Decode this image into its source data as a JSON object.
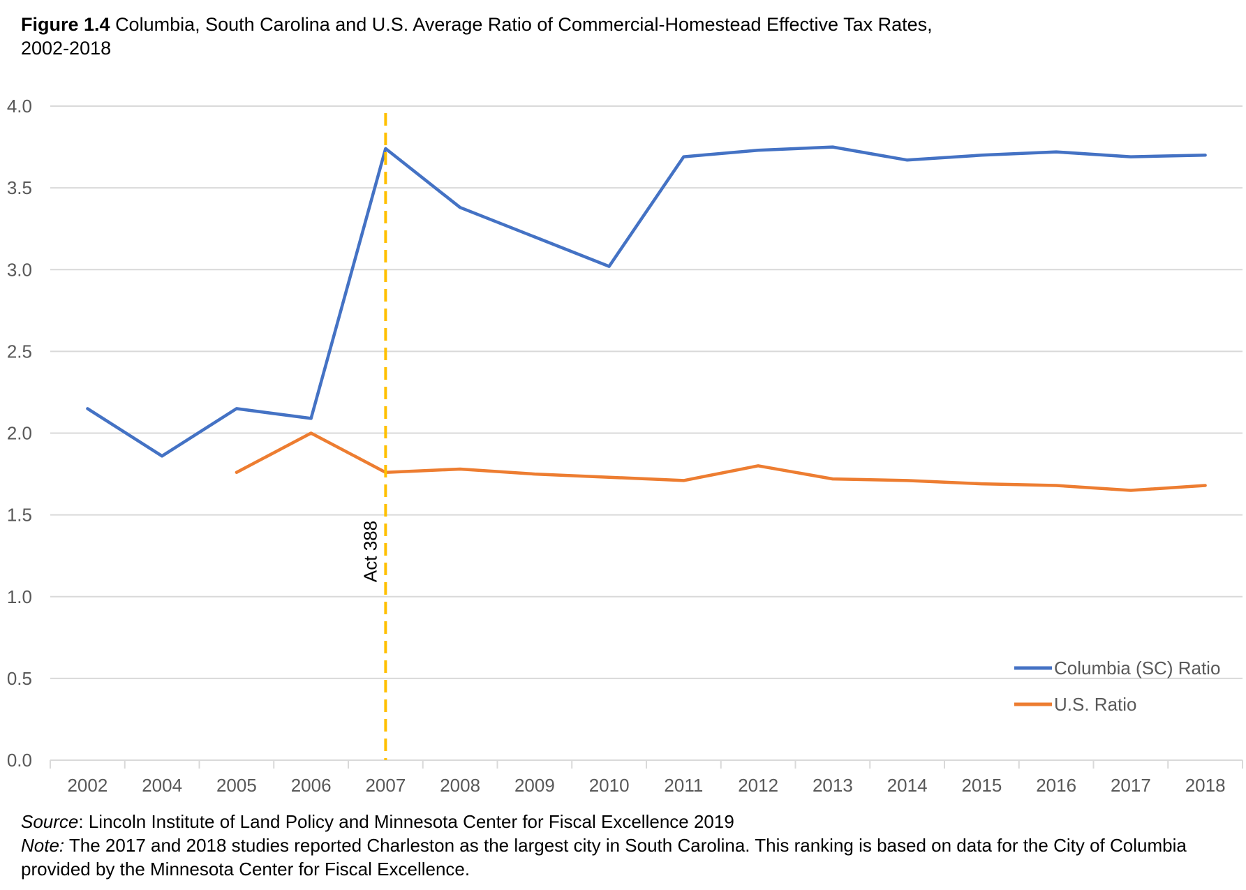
{
  "title": {
    "figure_label": "Figure 1.4",
    "line1": "Columbia, South Carolina and U.S. Average Ratio of Commercial-Homestead Effective Tax Rates,",
    "line2": "2002-2018"
  },
  "footer": {
    "source_label": "Source",
    "source_text": ": Lincoln Institute of Land Policy and Minnesota Center for Fiscal Excellence 2019",
    "note_label": "Note:",
    "note_text": " The 2017 and 2018 studies reported Charleston as the largest city in South Carolina. This ranking is based on data for the City of Columbia provided by the Minnesota Center for Fiscal Excellence."
  },
  "colors": {
    "columbia": "#4472C4",
    "us": "#ED7D31",
    "act_line": "#FFC000",
    "grid": "#D9D9D9"
  },
  "chart_data": {
    "type": "line",
    "categories": [
      "2002",
      "2004",
      "2005",
      "2006",
      "2007",
      "2008",
      "2009",
      "2010",
      "2011",
      "2012",
      "2013",
      "2014",
      "2015",
      "2016",
      "2017",
      "2018"
    ],
    "series": [
      {
        "name": "Columbia (SC) Ratio",
        "color": "#4472C4",
        "values": [
          2.15,
          1.86,
          2.15,
          2.09,
          3.74,
          3.38,
          3.2,
          3.02,
          3.69,
          3.73,
          3.75,
          3.67,
          3.7,
          3.72,
          3.69,
          3.7
        ]
      },
      {
        "name": "U.S. Ratio",
        "color": "#ED7D31",
        "values": [
          null,
          null,
          1.76,
          2.0,
          1.76,
          1.78,
          1.75,
          1.73,
          1.71,
          1.8,
          1.72,
          1.71,
          1.69,
          1.68,
          1.65,
          1.68
        ]
      }
    ],
    "yticks": [
      "0.0",
      "0.5",
      "1.0",
      "1.5",
      "2.0",
      "2.5",
      "3.0",
      "3.5",
      "4.0"
    ],
    "ylim": [
      0,
      4
    ],
    "grid": true,
    "legend_position": "bottom-right",
    "annotation": {
      "label": "Act 388",
      "at_category": "2007"
    }
  }
}
